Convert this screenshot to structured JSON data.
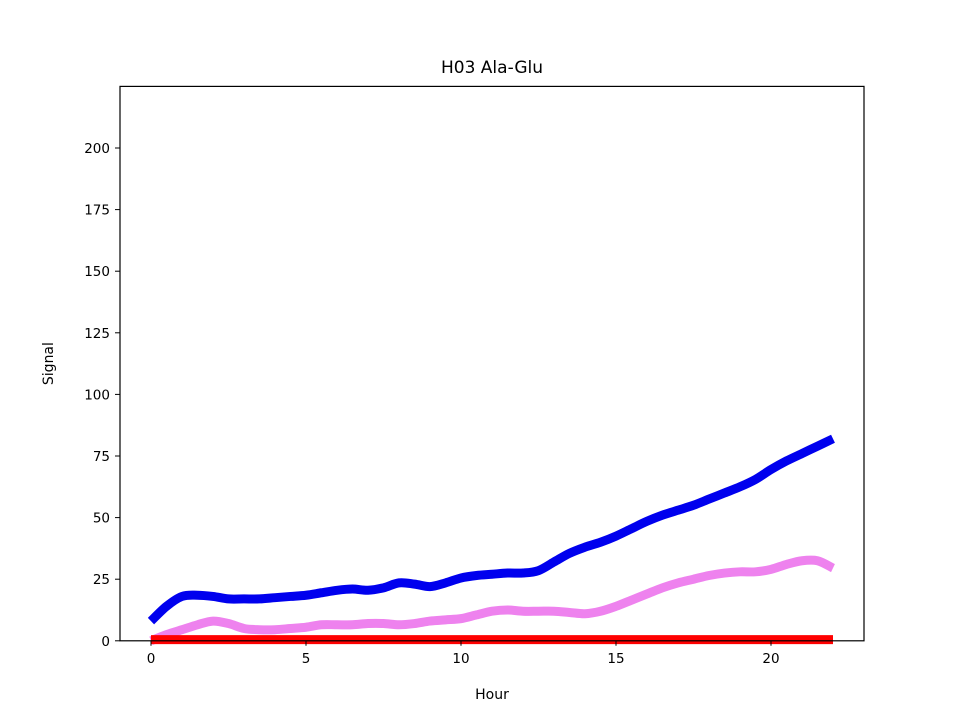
{
  "chart_data": {
    "type": "line",
    "title": "H03 Ala-Glu",
    "xlabel": "Hour",
    "ylabel": "Signal",
    "xlim": [
      -1,
      23
    ],
    "ylim": [
      0,
      225
    ],
    "xticks": [
      0,
      5,
      10,
      15,
      20
    ],
    "yticks": [
      0,
      25,
      50,
      75,
      100,
      125,
      150,
      175,
      200
    ],
    "grid": false,
    "series": [
      {
        "color": "#0000ee",
        "x": [
          0,
          0.5,
          1,
          1.5,
          2,
          2.5,
          3,
          3.5,
          4,
          4.5,
          5,
          5.5,
          6,
          6.5,
          7,
          7.5,
          8,
          8.5,
          9,
          9.5,
          10,
          10.5,
          11,
          11.5,
          12,
          12.5,
          13,
          13.5,
          14,
          14.5,
          15,
          15.5,
          16,
          16.5,
          17,
          17.5,
          18,
          18.5,
          19,
          19.5,
          20,
          20.5,
          21,
          21.5,
          22
        ],
        "y": [
          8,
          14,
          18,
          18.5,
          18,
          17,
          17,
          17,
          17.5,
          18,
          18.5,
          19.5,
          20.5,
          21,
          20.5,
          21.5,
          23.5,
          23,
          22,
          23.5,
          25.5,
          26.5,
          27,
          27.5,
          27.5,
          28.5,
          32,
          35.5,
          38,
          40,
          42.5,
          45.5,
          48.5,
          51,
          53,
          55,
          57.5,
          60,
          62.5,
          65.5,
          69.5,
          73,
          76,
          79,
          82
        ]
      },
      {
        "color": "#ee82ee",
        "x": [
          0,
          0.5,
          1,
          1.5,
          2,
          2.5,
          3,
          3.5,
          4,
          4.5,
          5,
          5.5,
          6,
          6.5,
          7,
          7.5,
          8,
          8.5,
          9,
          9.5,
          10,
          10.5,
          11,
          11.5,
          12,
          12.5,
          13,
          13.5,
          14,
          14.5,
          15,
          15.5,
          16,
          16.5,
          17,
          17.5,
          18,
          18.5,
          19,
          19.5,
          20,
          20.5,
          21,
          21.5,
          22
        ],
        "y": [
          0,
          2.5,
          4.5,
          6.5,
          8,
          7,
          5,
          4.5,
          4.5,
          5,
          5.5,
          6.5,
          6.5,
          6.5,
          7,
          7,
          6.5,
          7,
          8,
          8.5,
          9,
          10.5,
          12,
          12.5,
          12,
          12,
          12,
          11.5,
          11,
          12,
          14,
          16.5,
          19,
          21.5,
          23.5,
          25,
          26.5,
          27.5,
          28,
          28,
          29,
          31,
          32.5,
          32.5,
          29.5
        ]
      },
      {
        "color": "#ff0000",
        "x": [
          0,
          22
        ],
        "y": [
          0.5,
          0.5
        ]
      }
    ]
  }
}
